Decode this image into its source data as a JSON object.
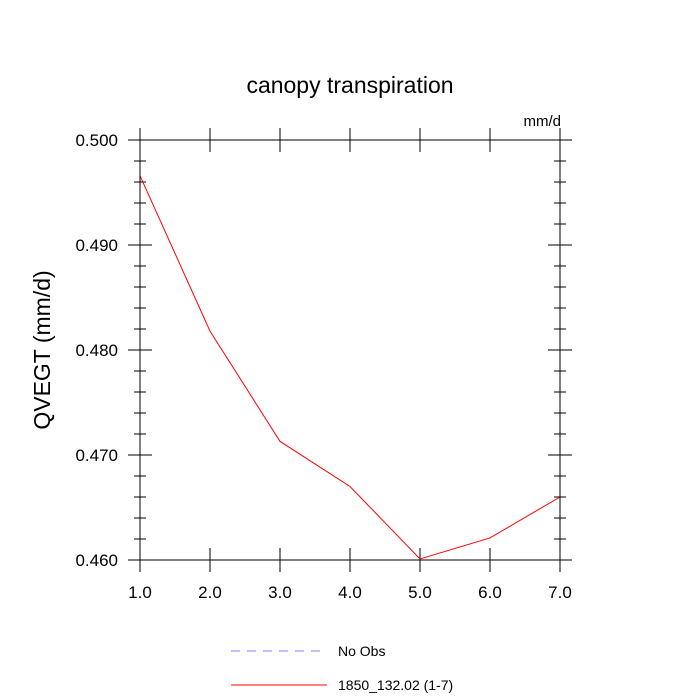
{
  "chart_data": {
    "type": "line",
    "title": "canopy transpiration",
    "units": "mm/d",
    "ylabel": "QVEGT  (mm/d)",
    "xlabel": "",
    "xlim": [
      1.0,
      7.0
    ],
    "ylim": [
      0.46,
      0.5
    ],
    "x_ticks": [
      "1.0",
      "2.0",
      "3.0",
      "4.0",
      "5.0",
      "6.0",
      "7.0"
    ],
    "y_ticks": [
      "0.460",
      "0.470",
      "0.480",
      "0.490",
      "0.500"
    ],
    "x_tick_values": [
      1,
      2,
      3,
      4,
      5,
      6,
      7
    ],
    "y_tick_values": [
      0.46,
      0.47,
      0.48,
      0.49,
      0.5
    ],
    "grid": false,
    "legend_position": "bottom",
    "series": [
      {
        "name": "1850_132.02 (1-7)",
        "color": "#ff0000",
        "style": "solid",
        "x": [
          1,
          2,
          3,
          4,
          5,
          6,
          7
        ],
        "values": [
          0.4966,
          0.4818,
          0.4713,
          0.467,
          0.4601,
          0.4621,
          0.466
        ]
      }
    ],
    "legend": [
      {
        "label": "No Obs",
        "color": "#8080ff",
        "style": "dashed"
      },
      {
        "label": "1850_132.02 (1-7)",
        "color": "#ff0000",
        "style": "solid"
      }
    ]
  }
}
